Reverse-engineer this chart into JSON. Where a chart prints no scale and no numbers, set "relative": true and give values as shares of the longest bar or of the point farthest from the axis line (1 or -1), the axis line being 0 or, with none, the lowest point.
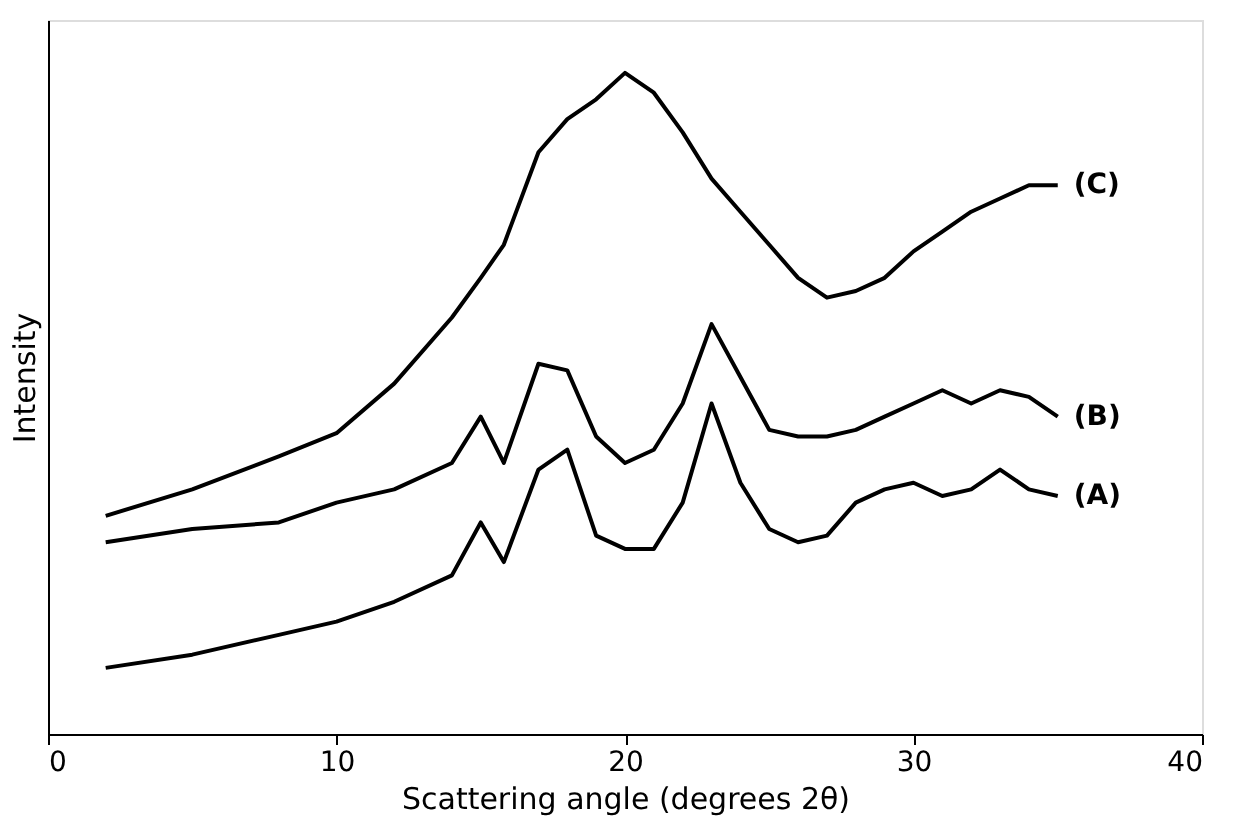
{
  "chart_data": {
    "type": "line",
    "relative": true,
    "xlabel": "Scattering angle (degrees 2θ)",
    "ylabel": "Intensity",
    "xlim": [
      0,
      40
    ],
    "xticks": [
      0,
      10,
      20,
      30,
      40
    ],
    "grid": false,
    "legend": false,
    "marker": "none",
    "line_style": "solid",
    "x": [
      2,
      5,
      8,
      10,
      12,
      14,
      15,
      15.8,
      17,
      18,
      19,
      20,
      21,
      22,
      23,
      24,
      25,
      26,
      27,
      28,
      29,
      30,
      31,
      32,
      33,
      34,
      35
    ],
    "series": [
      {
        "name": "(A)",
        "color": "#000000",
        "values": [
          0.1,
          0.12,
          0.15,
          0.17,
          0.2,
          0.24,
          0.32,
          0.26,
          0.4,
          0.43,
          0.3,
          0.28,
          0.28,
          0.35,
          0.5,
          0.38,
          0.31,
          0.29,
          0.3,
          0.35,
          0.37,
          0.38,
          0.36,
          0.37,
          0.4,
          0.37,
          0.36
        ]
      },
      {
        "name": "(B)",
        "color": "#000000",
        "values": [
          0.29,
          0.31,
          0.32,
          0.35,
          0.37,
          0.41,
          0.48,
          0.41,
          0.56,
          0.55,
          0.45,
          0.41,
          0.43,
          0.5,
          0.62,
          0.54,
          0.46,
          0.45,
          0.45,
          0.46,
          0.48,
          0.5,
          0.52,
          0.5,
          0.52,
          0.51,
          0.48
        ]
      },
      {
        "name": "(C)",
        "color": "#000000",
        "values": [
          0.33,
          0.37,
          0.42,
          0.455,
          0.53,
          0.63,
          0.69,
          0.74,
          0.88,
          0.93,
          0.96,
          1.0,
          0.97,
          0.91,
          0.84,
          0.79,
          0.74,
          0.69,
          0.66,
          0.67,
          0.69,
          0.73,
          0.76,
          0.79,
          0.81,
          0.83,
          0.83
        ]
      }
    ]
  }
}
